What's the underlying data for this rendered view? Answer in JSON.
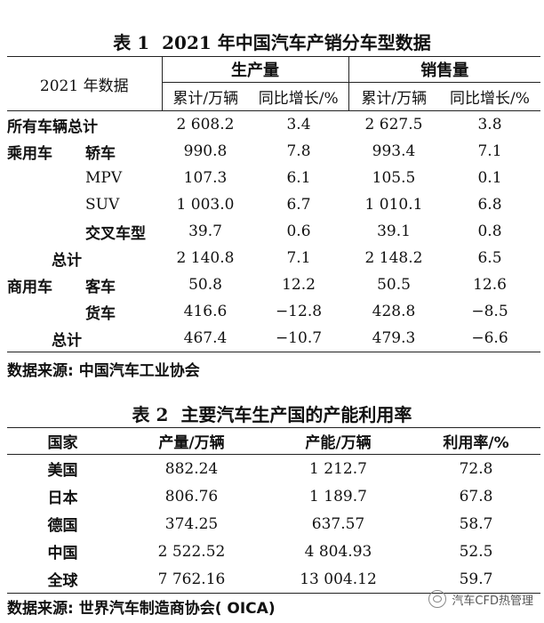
{
  "table1": {
    "caption_num": "表 1",
    "caption_title": "2021 年中国汽车产销分车型数据",
    "corner_label": "2021 年数据",
    "group_production": "生产量",
    "group_sales": "销售量",
    "col_cum": "累计/万辆",
    "col_yoy": "同比增长/%",
    "rows": [
      {
        "cat": "所有车辆总计",
        "sub": "",
        "p_cum": "2 608.2",
        "p_yoy": "3.4",
        "s_cum": "2 627.5",
        "s_yoy": "3.8"
      },
      {
        "cat": "乘用车",
        "sub": "轿车",
        "p_cum": "990.8",
        "p_yoy": "7.8",
        "s_cum": "993.4",
        "s_yoy": "7.1"
      },
      {
        "cat": "",
        "sub": "MPV",
        "p_cum": "107.3",
        "p_yoy": "6.1",
        "s_cum": "105.5",
        "s_yoy": "0.1"
      },
      {
        "cat": "",
        "sub": "SUV",
        "p_cum": "1 003.0",
        "p_yoy": "6.7",
        "s_cum": "1 010.1",
        "s_yoy": "6.8"
      },
      {
        "cat": "",
        "sub": "交叉车型",
        "p_cum": "39.7",
        "p_yoy": "0.6",
        "s_cum": "39.1",
        "s_yoy": "0.8"
      },
      {
        "cat": "",
        "sub": "总计",
        "p_cum": "2 140.8",
        "p_yoy": "7.1",
        "s_cum": "2 148.2",
        "s_yoy": "6.5"
      },
      {
        "cat": "商用车",
        "sub": "客车",
        "p_cum": "50.8",
        "p_yoy": "12.2",
        "s_cum": "50.5",
        "s_yoy": "12.6"
      },
      {
        "cat": "",
        "sub": "货车",
        "p_cum": "416.6",
        "p_yoy": "−12.8",
        "s_cum": "428.8",
        "s_yoy": "−8.5"
      },
      {
        "cat": "",
        "sub": "总计",
        "p_cum": "467.4",
        "p_yoy": "−10.7",
        "s_cum": "479.3",
        "s_yoy": "−6.6"
      }
    ],
    "source": "数据来源: 中国汽车工业协会"
  },
  "table2": {
    "caption_num": "表 2",
    "caption_title": "主要汽车生产国的产能利用率",
    "headers": [
      "国家",
      "产量/万辆",
      "产能/万辆",
      "利用率/%"
    ],
    "rows": [
      {
        "country": "美国",
        "output": "882.24",
        "capacity": "1 212.7",
        "rate": "72.8"
      },
      {
        "country": "日本",
        "output": "806.76",
        "capacity": "1 189.7",
        "rate": "67.8"
      },
      {
        "country": "德国",
        "output": "374.25",
        "capacity": "637.57",
        "rate": "58.7"
      },
      {
        "country": "中国",
        "output": "2 522.52",
        "capacity": "4 804.93",
        "rate": "52.5"
      },
      {
        "country": "全球",
        "output": "7 762.16",
        "capacity": "13 004.12",
        "rate": "59.7"
      }
    ],
    "source": "数据来源: 世界汽车制造商协会( OICA)"
  },
  "watermark": {
    "text": "汽车CFD热管理",
    "icon": "wechat-official-account-icon"
  }
}
